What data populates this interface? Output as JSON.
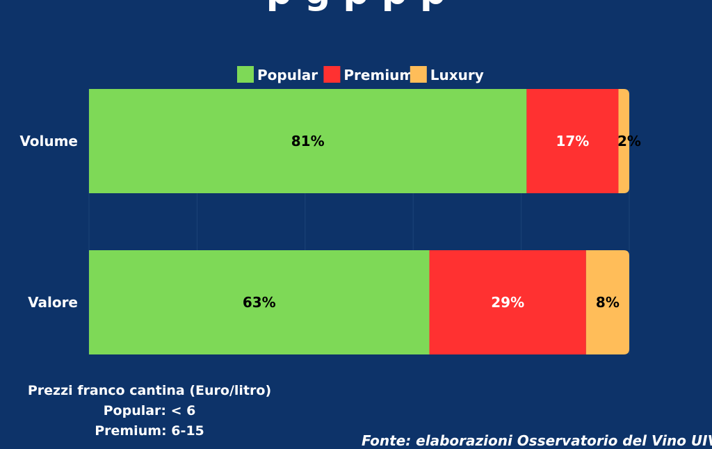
{
  "page": {
    "title_fragment": "p               g      p  p  p",
    "footnote": [
      "Prezzi franco cantina (Euro/litro)",
      "Popular: < 6",
      "Premium: 6-15"
    ],
    "source": "Fonte: elaborazioni Osservatorio del Vino UIV"
  },
  "chart_data": {
    "type": "bar",
    "orientation": "horizontal",
    "stacked": true,
    "categories": [
      "Volume",
      "Valore"
    ],
    "series": [
      {
        "name": "Popular",
        "values": [
          81,
          63
        ],
        "labels": [
          "81%",
          "63%"
        ],
        "color": "#7ed957",
        "label_color": "#000000"
      },
      {
        "name": "Premium",
        "values": [
          17,
          29
        ],
        "labels": [
          "17%",
          "29%"
        ],
        "color": "#ff3131",
        "label_color": "#ffffff"
      },
      {
        "name": "Luxury",
        "values": [
          2,
          8
        ],
        "labels": [
          "2%",
          "8%"
        ],
        "color": "#ffbd59",
        "label_color": "#000000"
      }
    ],
    "xlim": [
      0,
      100
    ],
    "grid": true,
    "legend": "top-center",
    "background": "#0d3369",
    "text_color": "#ffffff",
    "grid_color": "#1c4378"
  }
}
